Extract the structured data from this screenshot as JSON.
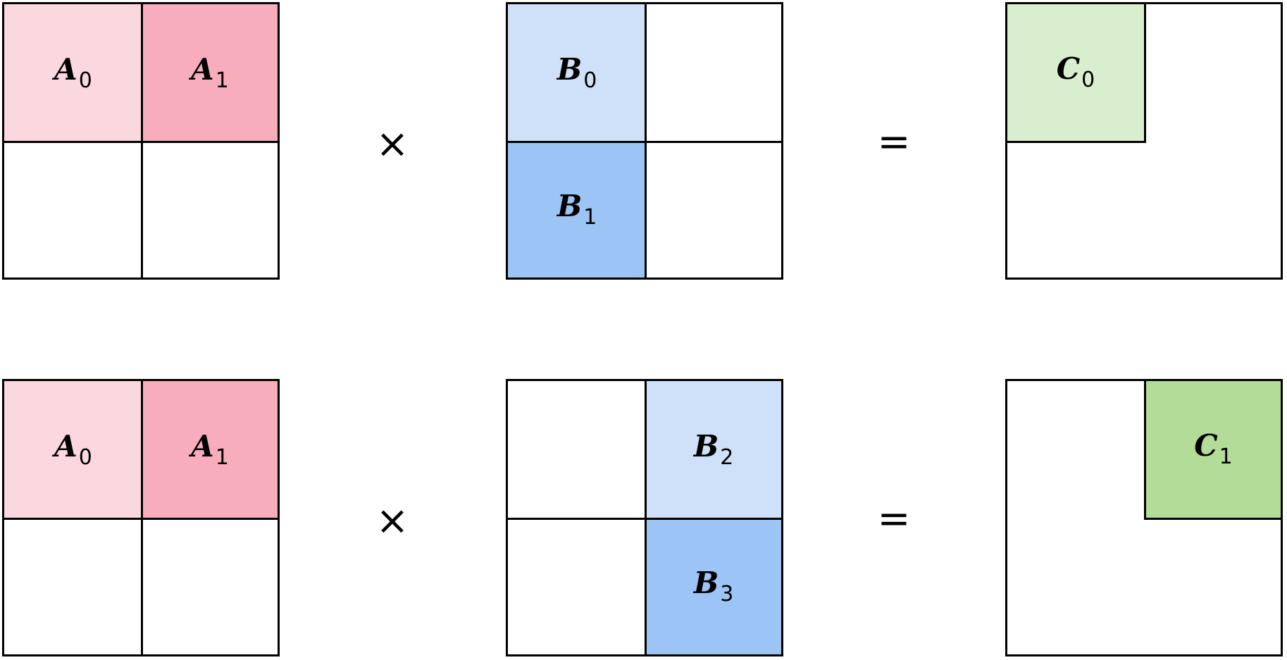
{
  "colors": {
    "a0": "#fbd7df",
    "a1": "#f7adbb",
    "b_light": "#cfe1f8",
    "b_dark": "#9cc5f5",
    "c0": "#d9eecf",
    "c1": "#b2dc97",
    "border": "#000000"
  },
  "operators": {
    "times": "×",
    "equals": "="
  },
  "rows": [
    {
      "a": [
        {
          "base": "A",
          "sub": "0"
        },
        {
          "base": "A",
          "sub": "1"
        }
      ],
      "b": [
        {
          "base": "B",
          "sub": "0"
        },
        {
          "base": "B",
          "sub": "1"
        }
      ],
      "c": {
        "base": "C",
        "sub": "0"
      }
    },
    {
      "a": [
        {
          "base": "A",
          "sub": "0"
        },
        {
          "base": "A",
          "sub": "1"
        }
      ],
      "b": [
        {
          "base": "B",
          "sub": "2"
        },
        {
          "base": "B",
          "sub": "3"
        }
      ],
      "c": {
        "base": "C",
        "sub": "1"
      }
    }
  ]
}
